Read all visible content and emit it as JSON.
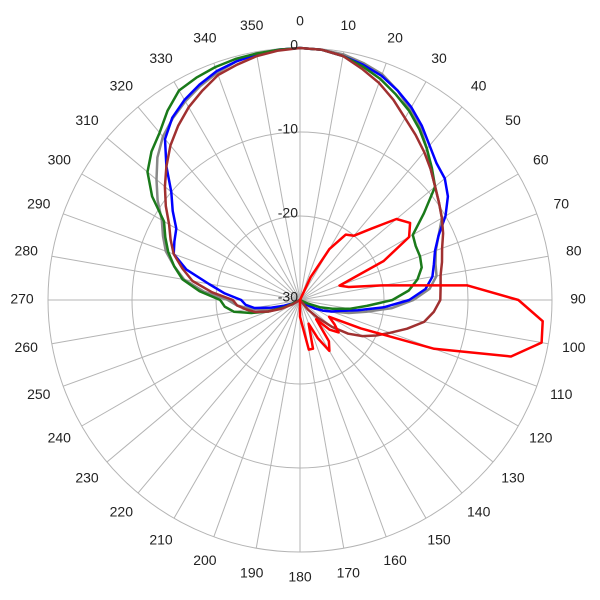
{
  "chart_data": {
    "type": "polar",
    "theta": [
      0,
      5,
      10,
      15,
      20,
      25,
      30,
      35,
      40,
      45,
      50,
      55,
      60,
      65,
      70,
      75,
      80,
      85,
      90,
      95,
      100,
      105,
      110,
      115,
      120,
      125,
      130,
      135,
      140,
      145,
      150,
      155,
      160,
      165,
      170,
      175,
      180,
      185,
      190,
      195,
      200,
      205,
      210,
      215,
      220,
      225,
      230,
      235,
      240,
      245,
      250,
      255,
      260,
      265,
      270,
      275,
      280,
      285,
      290,
      295,
      300,
      305,
      310,
      315,
      320,
      325,
      330,
      335,
      340,
      345,
      350,
      355
    ],
    "thetaticks": [
      0,
      10,
      20,
      30,
      40,
      50,
      60,
      70,
      80,
      90,
      100,
      110,
      120,
      130,
      140,
      150,
      160,
      170,
      180,
      190,
      200,
      210,
      220,
      230,
      240,
      250,
      260,
      270,
      280,
      290,
      300,
      310,
      320,
      330,
      340,
      350
    ],
    "rlim": [
      -30,
      0
    ],
    "rticks": [
      -30,
      -20,
      -10,
      0
    ],
    "series": [
      {
        "color": "#888888",
        "values": [
          0,
          -0.1,
          -0.3,
          -0.8,
          -1.4,
          -2.5,
          -3.8,
          -5,
          -6.5,
          -8,
          -9,
          -9.8,
          -10.5,
          -11.8,
          -12.8,
          -13.3,
          -13.5,
          -14.5,
          -16.5,
          -19,
          -22,
          -24,
          -26,
          -27,
          -28,
          -29,
          -29.5,
          -30,
          -30,
          -30,
          -30,
          -30,
          -30,
          -30,
          -30,
          -30,
          -30,
          -30,
          -30,
          -30,
          -30,
          -30,
          -30,
          -30,
          -30,
          -30,
          -30,
          -30,
          -29.5,
          -28.5,
          -27,
          -25.5,
          -24,
          -22.5,
          -21.4,
          -18.5,
          -16,
          -14.5,
          -13,
          -12,
          -11,
          -9.3,
          -7.7,
          -6,
          -4.6,
          -3.6,
          -2.7,
          -1.9,
          -1.2,
          -0.6,
          -0.3,
          -0.1
        ]
      },
      {
        "color": "#0000ff",
        "values": [
          0,
          -0.1,
          -0.5,
          -1,
          -1.6,
          -2.5,
          -3.5,
          -4.7,
          -6,
          -7,
          -7.5,
          -8.5,
          -10,
          -11.8,
          -12.9,
          -13.5,
          -14,
          -15,
          -17,
          -20,
          -23,
          -25,
          -26,
          -27,
          -28,
          -29,
          -30,
          -30,
          -30,
          -30,
          -30,
          -30,
          -30,
          -30,
          -30,
          -30,
          -30,
          -30,
          -30,
          -30,
          -30,
          -30,
          -30,
          -30,
          -30,
          -30,
          -30,
          -30,
          -30,
          -29,
          -28,
          -26.5,
          -24.5,
          -23.5,
          -23,
          -21,
          -19,
          -16,
          -14,
          -13.5,
          -13,
          -11.5,
          -10,
          -7.5,
          -5,
          -3.5,
          -2.5,
          -1.7,
          -1,
          -0.6,
          -0.3,
          -0.1
        ]
      },
      {
        "color": "#1a7a1a",
        "values": [
          0,
          -0.1,
          -0.5,
          -1.2,
          -2,
          -3,
          -4,
          -5.2,
          -6.5,
          -7.8,
          -9,
          -12,
          -14.5,
          -14.8,
          -14.8,
          -15,
          -15.8,
          -17,
          -19,
          -22,
          -24,
          -26,
          -27.5,
          -29,
          -30,
          -30,
          -30,
          -30,
          -30,
          -30,
          -30,
          -30,
          -30,
          -30,
          -30,
          -30,
          -30,
          -30,
          -30,
          -30,
          -30,
          -30,
          -30,
          -30,
          -30,
          -30,
          -30,
          -30,
          -30,
          -28,
          -26,
          -24,
          -22,
          -21,
          -20.5,
          -18,
          -15.8,
          -14.5,
          -13.3,
          -12.3,
          -11.3,
          -8.5,
          -6.3,
          -5,
          -4,
          -2.5,
          -1.2,
          -0.8,
          -0.5,
          -0.3,
          -0.2,
          -0.1
        ]
      },
      {
        "color": "#a03030",
        "values": [
          0,
          -0.1,
          -0.5,
          -1.5,
          -2.5,
          -3.7,
          -5,
          -6,
          -7,
          -8,
          -9,
          -9.8,
          -10.5,
          -11.2,
          -12,
          -12.5,
          -13,
          -13.2,
          -13.3,
          -14,
          -15,
          -16.8,
          -18.6,
          -20,
          -21.4,
          -23,
          -25,
          -27,
          -28.5,
          -30,
          -30,
          -30,
          -30,
          -30,
          -30,
          -30,
          -30,
          -30,
          -30,
          -30,
          -30,
          -30,
          -30,
          -30,
          -30,
          -30,
          -30,
          -30,
          -29,
          -27.5,
          -26,
          -24.5,
          -23.5,
          -22.5,
          -22,
          -19.5,
          -17,
          -15.5,
          -14,
          -13,
          -12,
          -10.5,
          -9,
          -7.5,
          -6,
          -4.7,
          -3.5,
          -2.5,
          -1.5,
          -1,
          -0.5,
          -0.2
        ]
      },
      {
        "color": "#ff0000",
        "values": [
          -30,
          -30,
          -30,
          -30,
          -30,
          -27,
          -23,
          -20.5,
          -20,
          -18,
          -15,
          -14,
          -15,
          -19,
          -25,
          -24,
          -20,
          -10,
          -4,
          -1,
          -0.8,
          -4,
          -13,
          -22,
          -26,
          -25,
          -24,
          -25,
          -27,
          -24,
          -23,
          -25,
          -27,
          -24,
          -24,
          -27,
          -28,
          -30,
          -30,
          -30,
          -30,
          -30,
          -30,
          -30,
          -30,
          -30,
          -30,
          -30,
          -30,
          -30,
          -30,
          -30,
          -30,
          -30,
          -30,
          -30,
          -30,
          -30,
          -30,
          -30,
          -30,
          -30,
          -30,
          -30,
          -30,
          -30,
          -30,
          -30,
          -30,
          -30,
          -30,
          -30
        ]
      }
    ],
    "grid": true
  }
}
